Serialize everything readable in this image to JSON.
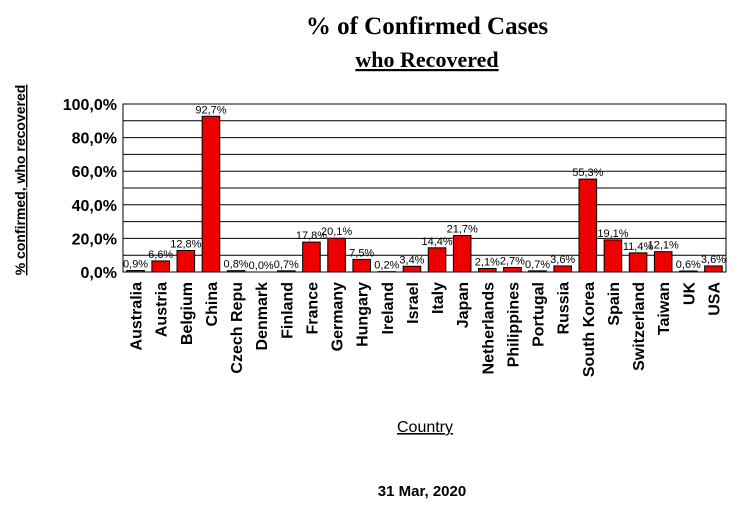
{
  "chart_data": {
    "type": "bar",
    "title": "% of Confirmed Cases",
    "subtitle": "who Recovered",
    "xlabel": "Country",
    "ylabel": "% confirmed, who recovered",
    "footer": "31 Mar, 2020",
    "ylim": [
      0,
      100
    ],
    "yticks": [
      "0,0%",
      "20,0%",
      "40,0%",
      "60,0%",
      "80,0%",
      "100,0%"
    ],
    "grid": true,
    "bar_color": "#ee0000",
    "categories": [
      "Australia",
      "Austria",
      "Belgium",
      "China",
      "Czech Repu",
      "Denmark",
      "Finland",
      "France",
      "Germany",
      "Hungary",
      "Ireland",
      "Israel",
      "Italy",
      "Japan",
      "Netherlands",
      "Philippines",
      "Portugal",
      "Russia",
      "South Korea",
      "Spain",
      "Switzerland",
      "Taiwan",
      "UK",
      "USA"
    ],
    "values": [
      0.9,
      6.6,
      12.8,
      92.7,
      0.8,
      0.0,
      0.7,
      17.8,
      20.1,
      7.5,
      0.2,
      3.4,
      14.4,
      21.7,
      2.1,
      2.7,
      0.7,
      3.6,
      55.3,
      19.1,
      11.4,
      12.1,
      0.6,
      3.6
    ],
    "data_labels": [
      "0,9%",
      "6,6%",
      "12,8%",
      "92,7%",
      "0,8%",
      "0,0%",
      "0,7%",
      "17,8%",
      "20,1%",
      "7,5%",
      "0,2%",
      "3,4%",
      "14,4%",
      "21,7%",
      "2,1%",
      "2,7%",
      "0,7%",
      "3,6%",
      "55,3%",
      "19,1%",
      "11,4%",
      "12,1%",
      "0,6%",
      "3,6%"
    ]
  }
}
